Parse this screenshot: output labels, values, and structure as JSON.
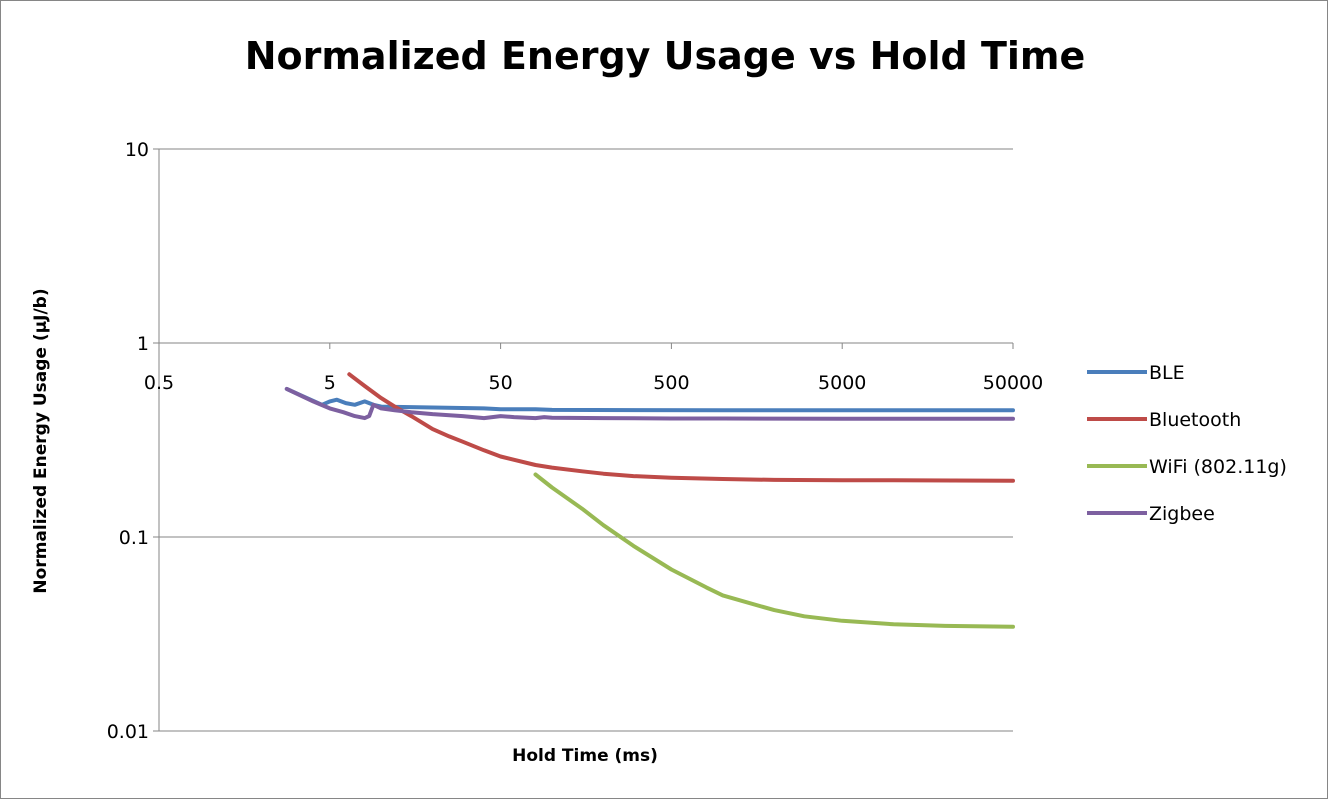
{
  "chart_data": {
    "type": "line",
    "title": "Normalized Energy Usage vs Hold Time",
    "xlabel": "Hold Time (ms)",
    "ylabel": "Normalized Energy Usage (µJ/b)",
    "x_scale": "log",
    "y_scale": "log",
    "xlim": [
      0.5,
      50000
    ],
    "ylim": [
      0.01,
      10
    ],
    "x_ticks": [
      "0.5",
      "5",
      "50",
      "500",
      "5000",
      "50000"
    ],
    "x_tick_values": [
      0.5,
      5,
      50,
      500,
      5000,
      50000
    ],
    "y_ticks": [
      "0.01",
      "0.1",
      "1",
      "10"
    ],
    "y_tick_values": [
      0.01,
      0.1,
      1,
      10
    ],
    "grid": "horizontal",
    "legend": "right",
    "series": [
      {
        "name": "BLE",
        "color": "#4a7ebb",
        "points": [
          [
            2.8,
            0.58
          ],
          [
            3.5,
            0.53
          ],
          [
            4.5,
            0.48
          ],
          [
            5.0,
            0.5
          ],
          [
            5.5,
            0.51
          ],
          [
            6.2,
            0.49
          ],
          [
            7.0,
            0.48
          ],
          [
            8.0,
            0.5
          ],
          [
            9.0,
            0.48
          ],
          [
            10,
            0.47
          ],
          [
            20,
            0.465
          ],
          [
            40,
            0.46
          ],
          [
            50,
            0.455
          ],
          [
            80,
            0.455
          ],
          [
            100,
            0.452
          ],
          [
            1000,
            0.45
          ],
          [
            10000,
            0.45
          ],
          [
            50000,
            0.45
          ]
        ]
      },
      {
        "name": "Bluetooth",
        "color": "#be4b48",
        "points": [
          [
            6.5,
            0.69
          ],
          [
            8,
            0.6
          ],
          [
            10,
            0.52
          ],
          [
            12,
            0.47
          ],
          [
            15,
            0.42
          ],
          [
            20,
            0.36
          ],
          [
            25,
            0.33
          ],
          [
            30,
            0.31
          ],
          [
            40,
            0.28
          ],
          [
            50,
            0.26
          ],
          [
            60,
            0.25
          ],
          [
            80,
            0.235
          ],
          [
            100,
            0.228
          ],
          [
            150,
            0.218
          ],
          [
            200,
            0.212
          ],
          [
            300,
            0.206
          ],
          [
            500,
            0.202
          ],
          [
            1000,
            0.199
          ],
          [
            2000,
            0.197
          ],
          [
            5000,
            0.196
          ],
          [
            10000,
            0.196
          ],
          [
            50000,
            0.195
          ]
        ]
      },
      {
        "name": "WiFi (802.11g)",
        "color": "#98b954",
        "points": [
          [
            80,
            0.21
          ],
          [
            100,
            0.18
          ],
          [
            150,
            0.14
          ],
          [
            200,
            0.115
          ],
          [
            300,
            0.09
          ],
          [
            500,
            0.068
          ],
          [
            800,
            0.055
          ],
          [
            1000,
            0.05
          ],
          [
            2000,
            0.042
          ],
          [
            3000,
            0.039
          ],
          [
            5000,
            0.037
          ],
          [
            10000,
            0.0355
          ],
          [
            20000,
            0.0348
          ],
          [
            50000,
            0.0345
          ]
        ]
      },
      {
        "name": "Zigbee",
        "color": "#7d60a0",
        "points": [
          [
            2.8,
            0.58
          ],
          [
            4,
            0.5
          ],
          [
            5,
            0.46
          ],
          [
            6,
            0.44
          ],
          [
            7,
            0.42
          ],
          [
            8,
            0.41
          ],
          [
            8.5,
            0.42
          ],
          [
            9,
            0.48
          ],
          [
            10,
            0.46
          ],
          [
            12,
            0.45
          ],
          [
            15,
            0.44
          ],
          [
            20,
            0.43
          ],
          [
            30,
            0.42
          ],
          [
            40,
            0.41
          ],
          [
            50,
            0.42
          ],
          [
            60,
            0.415
          ],
          [
            80,
            0.41
          ],
          [
            90,
            0.415
          ],
          [
            100,
            0.412
          ],
          [
            200,
            0.41
          ],
          [
            500,
            0.408
          ],
          [
            1000,
            0.408
          ],
          [
            5000,
            0.407
          ],
          [
            50000,
            0.407
          ]
        ]
      }
    ]
  }
}
